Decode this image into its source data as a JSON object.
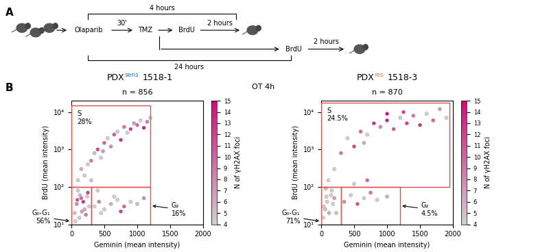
{
  "panel_labels": [
    "A",
    "B"
  ],
  "diagram": {
    "steps": [
      "Olaparib",
      "TMZ"
    ],
    "interval": "30'",
    "upper_branch": {
      "label": "BrdU",
      "duration": "2 hours"
    },
    "lower_branch": {
      "label": "BrdU",
      "duration": "2 hours"
    },
    "brackets": [
      "4 hours",
      "24 hours"
    ]
  },
  "center_label": "OT 4h",
  "chart_data": [
    {
      "type": "scatter",
      "title": {
        "text": "PDX",
        "superscript": "sens",
        "name": "1518-1",
        "color": "#2b7bba"
      },
      "subtitle": "n = 856",
      "x_label": "Geminin (mean intensity)",
      "y_label": "BrdU (mean intensity)",
      "xlim": [
        0,
        2000
      ],
      "xticks": [
        0,
        500,
        1000,
        1500,
        2000
      ],
      "ylim": [
        10,
        20000
      ],
      "yticks": [
        {
          "value": 10,
          "label": "10¹"
        },
        {
          "value": 100,
          "label": "10²"
        },
        {
          "value": 1000,
          "label": "10³"
        },
        {
          "value": 10000,
          "label": "10⁴"
        }
      ],
      "log": "y",
      "grid": false,
      "marker": "o",
      "x": [
        50,
        80,
        120,
        150,
        200,
        250,
        100,
        180,
        60,
        220,
        130,
        270,
        90,
        240,
        160,
        350,
        420,
        500,
        600,
        700,
        800,
        900,
        1000,
        1100,
        650,
        450,
        750,
        400,
        300,
        100,
        150,
        200,
        300,
        350,
        400,
        450,
        500,
        550,
        600,
        650,
        700,
        750,
        800,
        850,
        900,
        950,
        1000,
        1050,
        1100,
        1150,
        1200,
        250,
        480
      ],
      "y": [
        20,
        35,
        15,
        50,
        25,
        70,
        80,
        40,
        12,
        18,
        60,
        30,
        45,
        55,
        22,
        30,
        40,
        25,
        35,
        45,
        30,
        40,
        35,
        50,
        55,
        20,
        22,
        80,
        150,
        150,
        300,
        200,
        500,
        800,
        1000,
        600,
        1500,
        2000,
        1200,
        2500,
        3000,
        1800,
        4000,
        2800,
        3500,
        5000,
        4500,
        6000,
        3800,
        5500,
        7000,
        400,
        900
      ],
      "foci": [
        5,
        8,
        4,
        10,
        6,
        12,
        4,
        13,
        4,
        9,
        5,
        4,
        11,
        4,
        7,
        4,
        9,
        4,
        6,
        4,
        10,
        4,
        5,
        8,
        4,
        4,
        12,
        4,
        5,
        4,
        6,
        4,
        9,
        5,
        12,
        4,
        10,
        4,
        8,
        11,
        4,
        13,
        9,
        4,
        12,
        7,
        10,
        4,
        14,
        9,
        4,
        4,
        7
      ],
      "colorbar": {
        "label": "N of γH2AX foci",
        "range": [
          4,
          15
        ],
        "ticks": [
          4,
          5,
          6,
          7,
          8,
          9,
          10,
          11,
          12,
          13,
          14,
          15
        ],
        "colors": [
          "#d0d0d0",
          "#d6087c"
        ]
      },
      "gates": [
        {
          "name": "S",
          "percent_label": "28%",
          "x": [
            0,
            1200
          ],
          "y": [
            100,
            15000
          ],
          "color": "#e0504a"
        },
        {
          "name": "G₀-G₁",
          "percent_label": "56%",
          "x": [
            0,
            300
          ],
          "y": [
            10,
            100
          ],
          "color": "#e0504a"
        },
        {
          "name": "G₂",
          "percent_label": "16%",
          "x": [
            300,
            1200
          ],
          "y": [
            10,
            100
          ],
          "color": "#e0504a"
        }
      ]
    },
    {
      "type": "scatter",
      "title": {
        "text": "PDX",
        "superscript": "res",
        "name": "1518-3",
        "color": "#e8833a"
      },
      "subtitle": "n = 870",
      "x_label": "Geminin (mean intensity)",
      "y_label": "BrdU (mean intensity)",
      "xlim": [
        0,
        2000
      ],
      "xticks": [
        0,
        500,
        1000,
        1500,
        2000
      ],
      "ylim": [
        10,
        20000
      ],
      "yticks": [
        {
          "value": 10,
          "label": "10¹"
        },
        {
          "value": 100,
          "label": "10²"
        },
        {
          "value": 1000,
          "label": "10³"
        },
        {
          "value": 10000,
          "label": "10⁴"
        }
      ],
      "log": "y",
      "grid": false,
      "marker": "o",
      "x": [
        30,
        60,
        90,
        120,
        150,
        70,
        180,
        110,
        200,
        40,
        160,
        230,
        80,
        350,
        450,
        550,
        650,
        750,
        850,
        1000,
        500,
        700,
        200,
        300,
        400,
        500,
        600,
        700,
        800,
        900,
        1000,
        1100,
        1200,
        1300,
        1400,
        1500,
        1600,
        1700,
        1800,
        1900,
        1000,
        1250,
        650
      ],
      "y": [
        15,
        25,
        40,
        20,
        60,
        90,
        35,
        150,
        50,
        30,
        80,
        20,
        55,
        40,
        60,
        35,
        50,
        70,
        45,
        55,
        120,
        150,
        300,
        800,
        2000,
        1200,
        3000,
        2500,
        5000,
        4000,
        6000,
        3500,
        7000,
        5000,
        8000,
        4500,
        9000,
        6000,
        12000,
        7000,
        9000,
        10000,
        1500
      ],
      "foci": [
        4,
        5,
        4,
        6,
        4,
        5,
        4,
        4,
        7,
        4,
        4,
        5,
        4,
        8,
        4,
        11,
        4,
        9,
        4,
        6,
        4,
        10,
        4,
        9,
        4,
        12,
        10,
        4,
        13,
        8,
        14,
        11,
        4,
        12,
        9,
        13,
        4,
        10,
        7,
        4,
        15,
        12,
        6
      ],
      "colorbar": {
        "label": "N of γH2AX foci",
        "range": [
          4,
          15
        ],
        "ticks": [
          4,
          5,
          6,
          7,
          8,
          9,
          10,
          11,
          12,
          13,
          14,
          15
        ],
        "colors": [
          "#d0d0d0",
          "#d6087c"
        ]
      },
      "gates": [
        {
          "name": "S",
          "percent_label": "24.5%",
          "x": [
            0,
            1950
          ],
          "y": [
            100,
            18000
          ],
          "color": "#e0504a"
        },
        {
          "name": "G₀-G₁",
          "percent_label": "71%",
          "x": [
            0,
            300
          ],
          "y": [
            10,
            100
          ],
          "color": "#e0504a"
        },
        {
          "name": "G₂",
          "percent_label": "4.5%",
          "x": [
            300,
            1200
          ],
          "y": [
            10,
            100
          ],
          "color": "#e0504a"
        }
      ]
    }
  ]
}
